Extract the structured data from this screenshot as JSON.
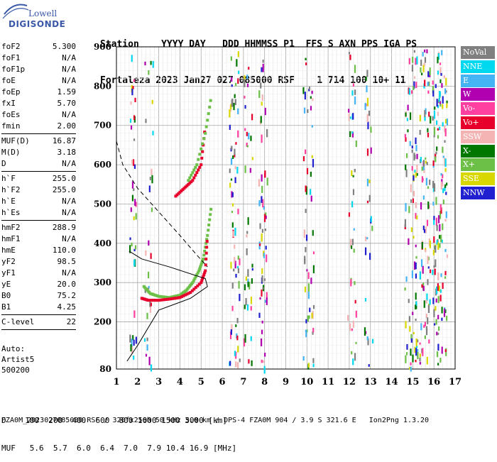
{
  "logo": {
    "line1": "Lowell",
    "line2": "DIGISONDE"
  },
  "header": {
    "row1": "Station    YYYY DAY   DDD HHMMSS P1  FFS S AXN PPS IGA PS",
    "row2": "Fortaleza 2023 Jan27 027 085000 RSF    1 714 100 10+ 11"
  },
  "params": [
    {
      "key": "foF2",
      "value": "5.300"
    },
    {
      "key": "foF1",
      "value": "N/A"
    },
    {
      "key": "foF1p",
      "value": "N/A"
    },
    {
      "key": "foE",
      "value": "N/A"
    },
    {
      "key": "foEp",
      "value": "1.59"
    },
    {
      "key": "fxI",
      "value": "5.70"
    },
    {
      "key": "foEs",
      "value": "N/A"
    },
    {
      "key": "fmin",
      "value": "2.00"
    },
    {
      "sep": true
    },
    {
      "key": "MUF(D)",
      "value": "16.87"
    },
    {
      "key": "M(D)",
      "value": "3.18"
    },
    {
      "key": "D",
      "value": "N/A"
    },
    {
      "sep": true
    },
    {
      "key": "h`F",
      "value": "255.0"
    },
    {
      "key": "h`F2",
      "value": "255.0"
    },
    {
      "key": "h`E",
      "value": "N/A"
    },
    {
      "key": "h`Es",
      "value": "N/A"
    },
    {
      "sep": true
    },
    {
      "key": "hmF2",
      "value": "288.9"
    },
    {
      "key": "hmF1",
      "value": "N/A"
    },
    {
      "key": "hmE",
      "value": "110.0"
    },
    {
      "key": "yF2",
      "value": "98.5"
    },
    {
      "key": "yF1",
      "value": "N/A"
    },
    {
      "key": "yE",
      "value": "20.0"
    },
    {
      "key": "B0",
      "value": "75.2"
    },
    {
      "key": "B1",
      "value": "4.25"
    },
    {
      "sep": true
    },
    {
      "key": "C-level",
      "value": "22"
    },
    {
      "sep": true
    }
  ],
  "auto": {
    "line1": "Auto:",
    "line2": "Artist5",
    "line3": "500200"
  },
  "legend": [
    {
      "label": "NoVal",
      "color": "#808080"
    },
    {
      "label": "NNE",
      "color": "#00d8f0"
    },
    {
      "label": "E",
      "color": "#44b4f4"
    },
    {
      "label": "W",
      "color": "#b000b0"
    },
    {
      "label": "Vo-",
      "color": "#ff40a0"
    },
    {
      "label": "Vo+",
      "color": "#e8002c"
    },
    {
      "label": "SSW",
      "color": "#f4b4b4"
    },
    {
      "label": "X-",
      "color": "#007800"
    },
    {
      "label": "X+",
      "color": "#6cc048"
    },
    {
      "label": "SSE",
      "color": "#d8d800"
    },
    {
      "label": "NNW",
      "color": "#2020d0"
    }
  ],
  "bottom": {
    "d_line": "D    100  200  400  600  800 1000 1500 3000 [km]",
    "muf_line": "MUF   5.6  5.7  6.0  6.4  7.0  7.9 10.4 16.9 [MHz]"
  },
  "footer": "FZA0M_2023027085000.RSF / 320fx256h 50 kHz 5.0 km / DPS-4 FZA0M 904 / 3.9 S 321.6 E   Ion2Png 1.3.20",
  "chart_data": {
    "type": "scatter",
    "xlabel": "",
    "ylabel": "",
    "x_ticks": [
      1,
      2,
      3,
      4,
      5,
      6,
      7,
      8,
      9,
      10,
      11,
      12,
      13,
      14,
      15,
      16,
      17
    ],
    "y_ticks": [
      80,
      200,
      300,
      400,
      500,
      600,
      700,
      800,
      900
    ],
    "xlim": [
      1,
      17
    ],
    "ylim": [
      80,
      900
    ],
    "grid": true,
    "series": [
      {
        "name": "X+",
        "color": "#6cc048",
        "x": [
          2.3,
          2.6,
          3.0,
          3.5,
          4.0,
          4.3,
          4.6,
          4.9,
          5.1,
          5.3,
          5.5
        ],
        "y": [
          290,
          272,
          265,
          262,
          268,
          280,
          300,
          330,
          360,
          420,
          500
        ]
      },
      {
        "name": "Vo+",
        "color": "#e8002c",
        "x": [
          2.2,
          2.5,
          3.0,
          3.5,
          4.0,
          4.5,
          5.0,
          5.2,
          5.3
        ],
        "y": [
          260,
          255,
          255,
          258,
          262,
          275,
          300,
          330,
          420
        ]
      },
      {
        "name": "Vo+ (2F)",
        "color": "#e8002c",
        "x": [
          3.8,
          4.2,
          4.6,
          5.0,
          5.2
        ],
        "y": [
          520,
          540,
          560,
          600,
          700
        ]
      },
      {
        "name": "X+ (2F)",
        "color": "#6cc048",
        "x": [
          4.4,
          4.8,
          5.2,
          5.5
        ],
        "y": [
          560,
          600,
          680,
          780
        ]
      }
    ],
    "profile_line": {
      "x": [
        1.5,
        2.0,
        3.0,
        4.5,
        5.3,
        5.2,
        3.5,
        2.2,
        1.6
      ],
      "y": [
        100,
        140,
        230,
        260,
        290,
        310,
        340,
        360,
        380
      ]
    },
    "muf_curve": {
      "x": [
        1,
        1.3,
        2,
        3,
        4,
        4.8,
        5.3
      ],
      "y": [
        660,
        600,
        540,
        480,
        420,
        370,
        340
      ]
    }
  }
}
